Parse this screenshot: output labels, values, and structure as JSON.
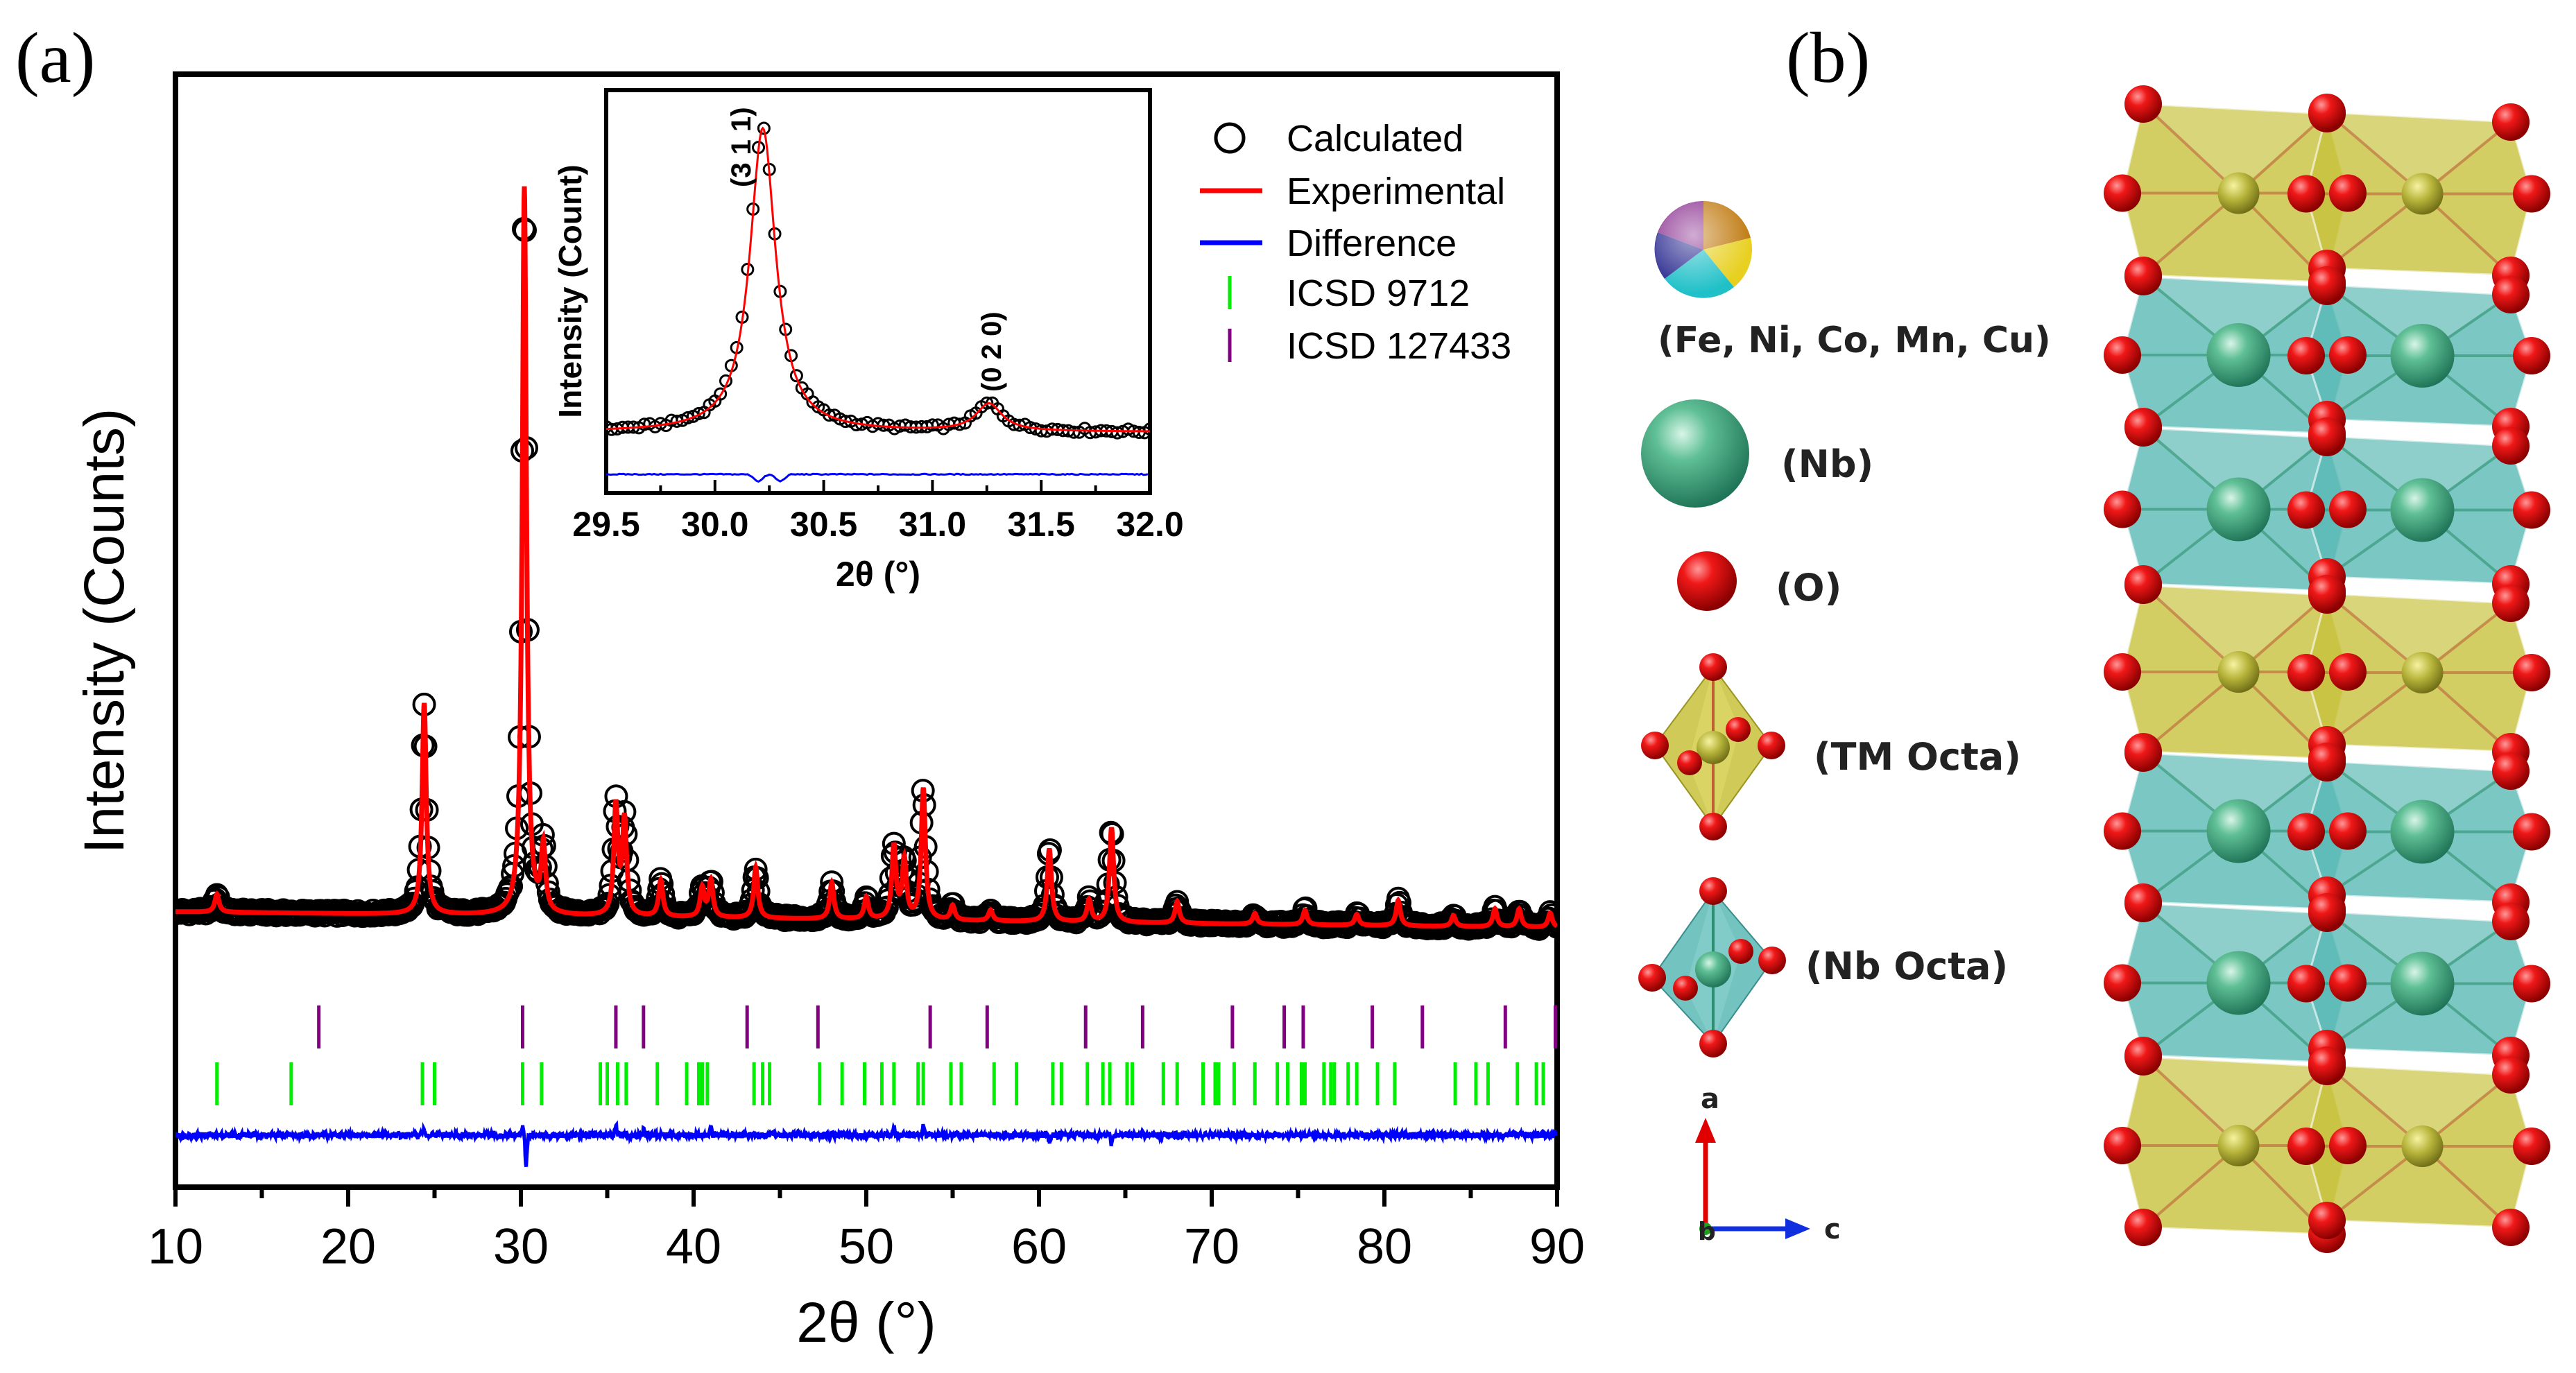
{
  "panel_a_label": "(a)",
  "panel_b_label": "(b)",
  "chart_data": [
    {
      "type": "line",
      "xlabel": "2θ (°)",
      "ylabel": "Intensity (Counts)",
      "xlim": [
        10,
        90
      ],
      "xticks": [
        "10",
        "20",
        "30",
        "40",
        "50",
        "60",
        "70",
        "80",
        "90"
      ],
      "y_ticks_shown": false,
      "grid": false,
      "legend_position": "top-right",
      "legend": [
        {
          "name": "Calculated",
          "marker": "open-circle",
          "color": "#000000"
        },
        {
          "name": "Experimental",
          "marker": "line",
          "color": "#ff0000"
        },
        {
          "name": "Difference",
          "marker": "line",
          "color": "#0000ff"
        },
        {
          "name": "ICSD 9712",
          "marker": "tick",
          "color": "#00ee00"
        },
        {
          "name": "ICSD 127433",
          "marker": "tick",
          "color": "#800080"
        }
      ],
      "peaks_relative_intensity": [
        {
          "x": 12.4,
          "y": 2.5
        },
        {
          "x": 24.4,
          "y": 29
        },
        {
          "x": 30.2,
          "y": 100
        },
        {
          "x": 31.3,
          "y": 9
        },
        {
          "x": 35.5,
          "y": 15
        },
        {
          "x": 36.0,
          "y": 13
        },
        {
          "x": 38.1,
          "y": 5
        },
        {
          "x": 40.5,
          "y": 4
        },
        {
          "x": 41.0,
          "y": 5
        },
        {
          "x": 43.6,
          "y": 7
        },
        {
          "x": 48.0,
          "y": 5
        },
        {
          "x": 50.0,
          "y": 3
        },
        {
          "x": 51.6,
          "y": 10
        },
        {
          "x": 52.2,
          "y": 8
        },
        {
          "x": 53.3,
          "y": 18
        },
        {
          "x": 55.0,
          "y": 2
        },
        {
          "x": 57.2,
          "y": 1.5
        },
        {
          "x": 60.6,
          "y": 10
        },
        {
          "x": 62.9,
          "y": 3
        },
        {
          "x": 64.2,
          "y": 13
        },
        {
          "x": 68.0,
          "y": 3
        },
        {
          "x": 72.5,
          "y": 1.5
        },
        {
          "x": 75.4,
          "y": 2
        },
        {
          "x": 78.4,
          "y": 1.5
        },
        {
          "x": 80.8,
          "y": 3.5
        },
        {
          "x": 84.0,
          "y": 1.5
        },
        {
          "x": 86.4,
          "y": 2.5
        },
        {
          "x": 87.8,
          "y": 2.5
        },
        {
          "x": 89.6,
          "y": 2
        }
      ],
      "difference_features": [
        {
          "x": 24.4,
          "y": 1
        },
        {
          "x": 30.1,
          "y": 1.5
        },
        {
          "x": 30.3,
          "y": -6
        },
        {
          "x": 35.5,
          "y": 2
        },
        {
          "x": 37.1,
          "y": 1
        },
        {
          "x": 41.0,
          "y": 1.5
        },
        {
          "x": 51.6,
          "y": 1.5
        },
        {
          "x": 53.3,
          "y": 2
        },
        {
          "x": 60.6,
          "y": -1.5
        },
        {
          "x": 64.2,
          "y": -2
        }
      ],
      "icsd_9712_positions": [
        12.4,
        16.7,
        24.3,
        25.0,
        30.1,
        31.2,
        34.6,
        35.0,
        35.6,
        36.1,
        37.9,
        39.6,
        40.3,
        40.5,
        40.8,
        43.5,
        44.0,
        44.4,
        47.3,
        48.6,
        49.9,
        50.9,
        51.6,
        53.0,
        53.3,
        54.9,
        55.5,
        57.4,
        58.7,
        60.8,
        61.3,
        62.8,
        63.7,
        64.1,
        65.1,
        65.4,
        67.2,
        68.0,
        69.5,
        70.2,
        70.4,
        71.3,
        72.5,
        73.8,
        74.4,
        75.2,
        75.4,
        76.5,
        76.9,
        77.1,
        77.9,
        78.4,
        79.6,
        80.6,
        84.1,
        85.3,
        86.0,
        87.7,
        88.8,
        89.2
      ],
      "icsd_127433_positions": [
        18.3,
        30.1,
        35.5,
        37.1,
        43.1,
        47.2,
        53.7,
        57.0,
        62.7,
        66.0,
        71.2,
        74.2,
        75.3,
        79.3,
        82.2,
        87.0,
        89.9
      ]
    },
    {
      "type": "line",
      "role": "inset",
      "xlabel": "2θ (°)",
      "ylabel": "Intensity (Count)",
      "xlim": [
        29.5,
        32.0
      ],
      "xticks": [
        "29.5",
        "30.0",
        "30.5",
        "31.0",
        "31.5",
        "32.0"
      ],
      "peaks_relative_intensity": [
        {
          "x": 30.22,
          "y": 100
        },
        {
          "x": 31.26,
          "y": 9
        }
      ],
      "annotations": [
        {
          "x": 30.22,
          "text": "(3 1 1)"
        },
        {
          "x": 31.26,
          "text": "(0 2 0)"
        }
      ],
      "difference_features": [
        {
          "x": 30.2,
          "y": -4
        },
        {
          "x": 30.3,
          "y": -4
        }
      ]
    }
  ],
  "structure_legend": {
    "tm_sphere": "(Fe, Ni, Co, Mn, Cu)",
    "nb_sphere": "(Nb)",
    "o_sphere": "(O)",
    "tm_octa": "(TM Octa)",
    "nb_octa": "(Nb Octa)",
    "axis_a": "a",
    "axis_b": "b",
    "axis_c": "c"
  },
  "colors": {
    "calculated": "#000000",
    "experimental": "#ff0000",
    "difference": "#0000ff",
    "icsd_9712": "#00ee00",
    "icsd_127433": "#800080",
    "tm_octahedron": "#c8c23c",
    "nb_octahedron": "#5ab9b5",
    "oxygen": "#e01010"
  }
}
